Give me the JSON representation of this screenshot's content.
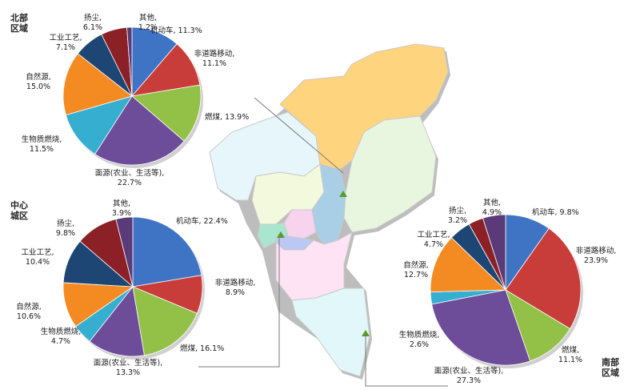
{
  "colors": {
    "机动车": "#3f73c4",
    "非道路移动": "#c83c3a",
    "燃煤": "#93c046",
    "面源(农业、生活等)": "#6d4c9a",
    "生物质燃烧": "#35aed0",
    "自然源": "#f48b22",
    "工业工艺": "#1e4675",
    "扬尘": "#8b2126",
    "其他": "#5a3a78"
  },
  "regions": {
    "north": {
      "title_line1": "北部",
      "title_line2": "区域"
    },
    "center": {
      "title_line1": "中心",
      "title_line2": "城区"
    },
    "south": {
      "title_line1": "南部",
      "title_line2": "区域"
    }
  },
  "chart_data": [
    {
      "type": "pie",
      "region": "north",
      "slices": [
        {
          "label": "机动车",
          "value": 11.3,
          "text": "机动车, 11.3%"
        },
        {
          "label": "非道路移动",
          "value": 11.1,
          "text": "非道路移动, 11.1%"
        },
        {
          "label": "燃煤",
          "value": 13.9,
          "text": "燃煤, 13.9%"
        },
        {
          "label": "面源(农业、生活等)",
          "value": 22.7,
          "text": "面源(农业、生活等), 22.7%"
        },
        {
          "label": "生物质燃烧",
          "value": 11.5,
          "text": "生物质燃烧, 11.5%"
        },
        {
          "label": "自然源",
          "value": 15.0,
          "text": "自然源, 15.0%"
        },
        {
          "label": "工业工艺",
          "value": 7.1,
          "text": "工业工艺, 7.1%"
        },
        {
          "label": "扬尘",
          "value": 6.1,
          "text": "扬尘, 6.1%"
        },
        {
          "label": "其他",
          "value": 1.2,
          "text": "其他, 1.2%"
        }
      ]
    },
    {
      "type": "pie",
      "region": "center",
      "slices": [
        {
          "label": "机动车",
          "value": 22.4,
          "text": "机动车, 22.4%"
        },
        {
          "label": "非道路移动",
          "value": 8.9,
          "text": "非道路移动, 8.9%"
        },
        {
          "label": "燃煤",
          "value": 16.1,
          "text": "燃煤, 16.1%"
        },
        {
          "label": "面源(农业、生活等)",
          "value": 13.3,
          "text": "面源(农业、生活等), 13.3%"
        },
        {
          "label": "生物质燃烧",
          "value": 4.7,
          "text": "生物质燃烧, 4.7%"
        },
        {
          "label": "自然源",
          "value": 10.6,
          "text": "自然源, 10.6%"
        },
        {
          "label": "工业工艺",
          "value": 10.4,
          "text": "工业工艺, 10.4%"
        },
        {
          "label": "扬尘",
          "value": 9.8,
          "text": "扬尘, 9.8%"
        },
        {
          "label": "其他",
          "value": 3.9,
          "text": "其他, 3.9%"
        }
      ]
    },
    {
      "type": "pie",
      "region": "south",
      "slices": [
        {
          "label": "机动车",
          "value": 9.8,
          "text": "机动车, 9.8%"
        },
        {
          "label": "非道路移动",
          "value": 23.9,
          "text": "非道路移动, 23.9%"
        },
        {
          "label": "燃煤",
          "value": 11.1,
          "text": "燃煤, 11.1%"
        },
        {
          "label": "面源(农业、生活等)",
          "value": 27.3,
          "text": "面源(农业、生活等), 27.3%"
        },
        {
          "label": "生物质燃烧",
          "value": 2.6,
          "text": "生物质燃烧, 2.6%"
        },
        {
          "label": "自然源",
          "value": 12.7,
          "text": "自然源, 12.7%"
        },
        {
          "label": "工业工艺",
          "value": 4.7,
          "text": "工业工艺, 4.7%"
        },
        {
          "label": "扬尘",
          "value": 3.2,
          "text": "扬尘, 3.2%"
        },
        {
          "label": "其他",
          "value": 4.9,
          "text": "其他, 4.9%"
        }
      ]
    }
  ]
}
